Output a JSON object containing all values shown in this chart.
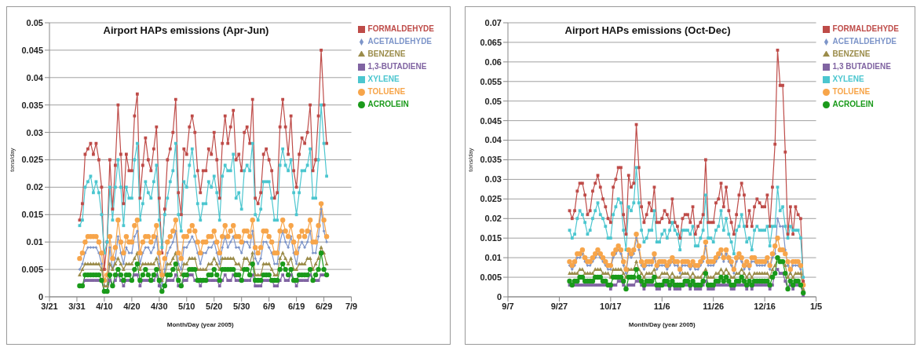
{
  "chart_data": [
    {
      "type": "line",
      "title": "Airport HAPs emissions (Apr-Jun)",
      "xlabel": "Month/Day (year 2005)",
      "ylabel": "tons/day",
      "grid": "y",
      "legend": "top right",
      "line_style": "solid",
      "x": [
        "2005-04-01",
        "2005-04-02",
        "2005-04-03",
        "2005-04-04",
        "2005-04-05",
        "2005-04-06",
        "2005-04-07",
        "2005-04-08",
        "2005-04-09",
        "2005-04-10",
        "2005-04-11",
        "2005-04-12",
        "2005-04-13",
        "2005-04-14",
        "2005-04-15",
        "2005-04-16",
        "2005-04-17",
        "2005-04-18",
        "2005-04-19",
        "2005-04-20",
        "2005-04-21",
        "2005-04-22",
        "2005-04-23",
        "2005-04-24",
        "2005-04-25",
        "2005-04-26",
        "2005-04-27",
        "2005-04-28",
        "2005-04-29",
        "2005-04-30",
        "2005-05-01",
        "2005-05-02",
        "2005-05-03",
        "2005-05-04",
        "2005-05-05",
        "2005-05-06",
        "2005-05-07",
        "2005-05-08",
        "2005-05-09",
        "2005-05-10",
        "2005-05-11",
        "2005-05-12",
        "2005-05-13",
        "2005-05-14",
        "2005-05-15",
        "2005-05-16",
        "2005-05-17",
        "2005-05-18",
        "2005-05-19",
        "2005-05-20",
        "2005-05-21",
        "2005-05-22",
        "2005-05-23",
        "2005-05-24",
        "2005-05-25",
        "2005-05-26",
        "2005-05-27",
        "2005-05-28",
        "2005-05-29",
        "2005-05-30",
        "2005-05-31",
        "2005-06-01",
        "2005-06-02",
        "2005-06-03",
        "2005-06-04",
        "2005-06-05",
        "2005-06-06",
        "2005-06-07",
        "2005-06-08",
        "2005-06-09",
        "2005-06-10",
        "2005-06-11",
        "2005-06-12",
        "2005-06-13",
        "2005-06-14",
        "2005-06-15",
        "2005-06-16",
        "2005-06-17",
        "2005-06-18",
        "2005-06-19",
        "2005-06-20",
        "2005-06-21",
        "2005-06-22",
        "2005-06-23",
        "2005-06-24",
        "2005-06-25",
        "2005-06-26",
        "2005-06-27",
        "2005-06-28",
        "2005-06-29",
        "2005-06-30"
      ],
      "xlim": [
        "2005-03-21",
        "2005-07-09"
      ],
      "xticks": [
        {
          "value": "2005-03-21",
          "label": "3/21"
        },
        {
          "value": "2005-03-31",
          "label": "3/31"
        },
        {
          "value": "2005-04-10",
          "label": "4/10"
        },
        {
          "value": "2005-04-20",
          "label": "4/20"
        },
        {
          "value": "2005-04-30",
          "label": "4/30"
        },
        {
          "value": "2005-05-10",
          "label": "5/10"
        },
        {
          "value": "2005-05-20",
          "label": "5/20"
        },
        {
          "value": "2005-05-30",
          "label": "5/30"
        },
        {
          "value": "2005-06-09",
          "label": "6/9"
        },
        {
          "value": "2005-06-19",
          "label": "6/19"
        },
        {
          "value": "2005-06-29",
          "label": "6/29"
        },
        {
          "value": "2005-07-09",
          "label": "7/9"
        }
      ],
      "ylim": [
        0,
        0.05
      ],
      "yticks": [
        0,
        0.005,
        0.01,
        0.015,
        0.02,
        0.025,
        0.03,
        0.035,
        0.04,
        0.045,
        0.05
      ],
      "series": [
        {
          "name": "FORMALDEHYDE",
          "color": "#be4b48",
          "marker": "square",
          "values": [
            0.014,
            0.017,
            0.026,
            0.027,
            0.028,
            0.026,
            0.028,
            0.025,
            0.02,
            0.005,
            0.01,
            0.025,
            0.016,
            0.024,
            0.035,
            0.026,
            0.017,
            0.026,
            0.023,
            0.023,
            0.033,
            0.037,
            0.018,
            0.024,
            0.029,
            0.025,
            0.023,
            0.027,
            0.031,
            0.018,
            0.008,
            0.016,
            0.025,
            0.027,
            0.03,
            0.036,
            0.019,
            0.015,
            0.027,
            0.026,
            0.031,
            0.033,
            0.03,
            0.023,
            0.019,
            0.023,
            0.023,
            0.027,
            0.026,
            0.03,
            0.025,
            0.018,
            0.028,
            0.033,
            0.028,
            0.031,
            0.034,
            0.025,
            0.026,
            0.023,
            0.03,
            0.031,
            0.028,
            0.036,
            0.018,
            0.017,
            0.019,
            0.026,
            0.027,
            0.025,
            0.023,
            0.018,
            0.019,
            0.031,
            0.036,
            0.031,
            0.026,
            0.033,
            0.023,
            0.02,
            0.026,
            0.029,
            0.028,
            0.03,
            0.035,
            0.023,
            0.025,
            0.033,
            0.045,
            0.035,
            0.028
          ]
        },
        {
          "name": "ACETALDEHYDE",
          "color": "#7d95c9",
          "marker": "diamond",
          "values": [
            0.005,
            0.006,
            0.008,
            0.009,
            0.009,
            0.009,
            0.009,
            0.008,
            0.006,
            0.002,
            0.002,
            0.009,
            0.005,
            0.007,
            0.011,
            0.008,
            0.006,
            0.009,
            0.008,
            0.008,
            0.011,
            0.012,
            0.006,
            0.008,
            0.009,
            0.009,
            0.008,
            0.009,
            0.011,
            0.006,
            0.002,
            0.005,
            0.008,
            0.009,
            0.01,
            0.012,
            0.006,
            0.005,
            0.009,
            0.009,
            0.01,
            0.011,
            0.01,
            0.008,
            0.006,
            0.008,
            0.008,
            0.009,
            0.009,
            0.01,
            0.008,
            0.006,
            0.009,
            0.011,
            0.009,
            0.01,
            0.011,
            0.009,
            0.009,
            0.008,
            0.01,
            0.01,
            0.009,
            0.012,
            0.007,
            0.006,
            0.007,
            0.01,
            0.01,
            0.009,
            0.008,
            0.006,
            0.006,
            0.01,
            0.012,
            0.01,
            0.009,
            0.011,
            0.008,
            0.006,
            0.009,
            0.01,
            0.009,
            0.01,
            0.012,
            0.008,
            0.008,
            0.011,
            0.016,
            0.012,
            0.01
          ]
        },
        {
          "name": "BENZENE",
          "color": "#9b8c4a",
          "marker": "triangle",
          "values": [
            0.004,
            0.005,
            0.006,
            0.006,
            0.006,
            0.006,
            0.006,
            0.006,
            0.005,
            0.002,
            0.002,
            0.006,
            0.005,
            0.006,
            0.007,
            0.006,
            0.005,
            0.006,
            0.006,
            0.006,
            0.007,
            0.008,
            0.005,
            0.006,
            0.006,
            0.006,
            0.006,
            0.006,
            0.007,
            0.005,
            0.003,
            0.004,
            0.006,
            0.006,
            0.007,
            0.008,
            0.005,
            0.004,
            0.006,
            0.006,
            0.007,
            0.007,
            0.007,
            0.005,
            0.005,
            0.005,
            0.005,
            0.006,
            0.006,
            0.007,
            0.006,
            0.005,
            0.007,
            0.007,
            0.007,
            0.007,
            0.007,
            0.006,
            0.006,
            0.005,
            0.007,
            0.007,
            0.006,
            0.008,
            0.004,
            0.004,
            0.004,
            0.006,
            0.006,
            0.006,
            0.005,
            0.004,
            0.004,
            0.007,
            0.008,
            0.007,
            0.006,
            0.007,
            0.005,
            0.005,
            0.006,
            0.006,
            0.006,
            0.007,
            0.007,
            0.005,
            0.006,
            0.007,
            0.009,
            0.008,
            0.006
          ]
        },
        {
          "name": "1,3-BUTADIENE",
          "color": "#8064a2",
          "marker": "square",
          "values": [
            0.002,
            0.002,
            0.003,
            0.003,
            0.003,
            0.003,
            0.003,
            0.003,
            0.003,
            0.001,
            0.001,
            0.003,
            0.002,
            0.003,
            0.004,
            0.003,
            0.002,
            0.003,
            0.003,
            0.003,
            0.004,
            0.004,
            0.002,
            0.003,
            0.003,
            0.003,
            0.003,
            0.003,
            0.004,
            0.002,
            0.001,
            0.002,
            0.003,
            0.003,
            0.003,
            0.004,
            0.002,
            0.002,
            0.003,
            0.003,
            0.004,
            0.004,
            0.003,
            0.003,
            0.002,
            0.003,
            0.003,
            0.003,
            0.003,
            0.003,
            0.003,
            0.002,
            0.003,
            0.004,
            0.003,
            0.003,
            0.004,
            0.003,
            0.003,
            0.003,
            0.003,
            0.003,
            0.003,
            0.004,
            0.002,
            0.002,
            0.002,
            0.003,
            0.003,
            0.003,
            0.003,
            0.002,
            0.002,
            0.003,
            0.004,
            0.003,
            0.003,
            0.004,
            0.003,
            0.002,
            0.003,
            0.003,
            0.003,
            0.003,
            0.004,
            0.003,
            0.003,
            0.003,
            0.004,
            0.004,
            0.004
          ]
        },
        {
          "name": "XYLENE",
          "color": "#4bc6cf",
          "marker": "square",
          "values": [
            0.013,
            0.014,
            0.02,
            0.021,
            0.022,
            0.019,
            0.021,
            0.019,
            0.015,
            0.008,
            0.01,
            0.02,
            0.014,
            0.02,
            0.025,
            0.02,
            0.013,
            0.02,
            0.018,
            0.018,
            0.025,
            0.028,
            0.014,
            0.017,
            0.021,
            0.019,
            0.018,
            0.021,
            0.024,
            0.014,
            0.009,
            0.015,
            0.018,
            0.021,
            0.023,
            0.028,
            0.015,
            0.012,
            0.021,
            0.02,
            0.024,
            0.027,
            0.022,
            0.017,
            0.014,
            0.017,
            0.017,
            0.021,
            0.02,
            0.022,
            0.019,
            0.014,
            0.022,
            0.024,
            0.023,
            0.023,
            0.026,
            0.018,
            0.019,
            0.016,
            0.023,
            0.024,
            0.023,
            0.028,
            0.015,
            0.014,
            0.016,
            0.021,
            0.021,
            0.021,
            0.018,
            0.014,
            0.014,
            0.024,
            0.027,
            0.024,
            0.023,
            0.025,
            0.019,
            0.015,
            0.019,
            0.023,
            0.023,
            0.024,
            0.027,
            0.018,
            0.018,
            0.025,
            0.035,
            0.028,
            0.022
          ]
        },
        {
          "name": "TOLUENE",
          "color": "#f7a54a",
          "marker": "circle",
          "values": [
            0.007,
            0.008,
            0.01,
            0.011,
            0.011,
            0.011,
            0.011,
            0.01,
            0.008,
            0.003,
            0.004,
            0.011,
            0.007,
            0.009,
            0.014,
            0.01,
            0.008,
            0.011,
            0.01,
            0.01,
            0.013,
            0.014,
            0.008,
            0.01,
            0.011,
            0.011,
            0.01,
            0.011,
            0.013,
            0.008,
            0.004,
            0.007,
            0.01,
            0.011,
            0.012,
            0.014,
            0.008,
            0.007,
            0.011,
            0.011,
            0.012,
            0.013,
            0.012,
            0.01,
            0.008,
            0.01,
            0.01,
            0.011,
            0.011,
            0.012,
            0.01,
            0.008,
            0.011,
            0.013,
            0.011,
            0.012,
            0.013,
            0.011,
            0.011,
            0.01,
            0.012,
            0.012,
            0.011,
            0.014,
            0.009,
            0.008,
            0.009,
            0.012,
            0.012,
            0.011,
            0.01,
            0.008,
            0.008,
            0.012,
            0.014,
            0.012,
            0.011,
            0.013,
            0.01,
            0.008,
            0.011,
            0.012,
            0.011,
            0.012,
            0.014,
            0.01,
            0.01,
            0.013,
            0.017,
            0.014,
            0.011
          ]
        },
        {
          "name": "ACROLEIN",
          "color": "#1a9a1a",
          "marker": "circle",
          "values": [
            0.002,
            0.002,
            0.004,
            0.004,
            0.004,
            0.004,
            0.004,
            0.004,
            0.003,
            0.001,
            0.001,
            0.004,
            0.002,
            0.004,
            0.005,
            0.004,
            0.003,
            0.004,
            0.004,
            0.003,
            0.005,
            0.006,
            0.003,
            0.004,
            0.005,
            0.004,
            0.003,
            0.004,
            0.005,
            0.003,
            0.001,
            0.002,
            0.004,
            0.004,
            0.005,
            0.006,
            0.003,
            0.002,
            0.004,
            0.004,
            0.005,
            0.005,
            0.005,
            0.003,
            0.003,
            0.003,
            0.003,
            0.004,
            0.004,
            0.005,
            0.004,
            0.003,
            0.005,
            0.005,
            0.005,
            0.005,
            0.005,
            0.004,
            0.004,
            0.003,
            0.005,
            0.005,
            0.004,
            0.006,
            0.003,
            0.003,
            0.003,
            0.004,
            0.004,
            0.004,
            0.003,
            0.003,
            0.003,
            0.005,
            0.006,
            0.005,
            0.004,
            0.005,
            0.003,
            0.003,
            0.004,
            0.004,
            0.004,
            0.004,
            0.005,
            0.003,
            0.004,
            0.005,
            0.008,
            0.005,
            0.004
          ]
        }
      ]
    },
    {
      "type": "line",
      "title": "Airport HAPs emissions (Oct-Dec)",
      "xlabel": "Month/Day (year 2005)",
      "ylabel": "tons/day",
      "grid": "y",
      "legend": "top right",
      "line_style": "solid",
      "x": [
        "2005-10-01",
        "2005-10-02",
        "2005-10-03",
        "2005-10-04",
        "2005-10-05",
        "2005-10-06",
        "2005-10-07",
        "2005-10-08",
        "2005-10-09",
        "2005-10-10",
        "2005-10-11",
        "2005-10-12",
        "2005-10-13",
        "2005-10-14",
        "2005-10-15",
        "2005-10-16",
        "2005-10-17",
        "2005-10-18",
        "2005-10-19",
        "2005-10-20",
        "2005-10-21",
        "2005-10-22",
        "2005-10-23",
        "2005-10-24",
        "2005-10-25",
        "2005-10-26",
        "2005-10-27",
        "2005-10-28",
        "2005-10-29",
        "2005-10-30",
        "2005-10-31",
        "2005-11-01",
        "2005-11-02",
        "2005-11-03",
        "2005-11-04",
        "2005-11-05",
        "2005-11-06",
        "2005-11-07",
        "2005-11-08",
        "2005-11-09",
        "2005-11-10",
        "2005-11-11",
        "2005-11-12",
        "2005-11-13",
        "2005-11-14",
        "2005-11-15",
        "2005-11-16",
        "2005-11-17",
        "2005-11-18",
        "2005-11-19",
        "2005-11-20",
        "2005-11-21",
        "2005-11-22",
        "2005-11-23",
        "2005-11-24",
        "2005-11-25",
        "2005-11-26",
        "2005-11-27",
        "2005-11-28",
        "2005-11-29",
        "2005-11-30",
        "2005-12-01",
        "2005-12-02",
        "2005-12-03",
        "2005-12-04",
        "2005-12-05",
        "2005-12-06",
        "2005-12-07",
        "2005-12-08",
        "2005-12-09",
        "2005-12-10",
        "2005-12-11",
        "2005-12-12",
        "2005-12-13",
        "2005-12-14",
        "2005-12-15",
        "2005-12-16",
        "2005-12-17",
        "2005-12-18",
        "2005-12-19",
        "2005-12-20",
        "2005-12-21",
        "2005-12-22",
        "2005-12-23",
        "2005-12-24",
        "2005-12-25",
        "2005-12-26",
        "2005-12-27",
        "2005-12-28",
        "2005-12-29",
        "2005-12-30",
        "2005-12-31"
      ],
      "xlim": [
        "2005-09-07",
        "2006-01-05"
      ],
      "xticks": [
        {
          "value": "2005-09-07",
          "label": "9/7"
        },
        {
          "value": "2005-09-27",
          "label": "9/27"
        },
        {
          "value": "2005-10-17",
          "label": "10/17"
        },
        {
          "value": "2005-11-06",
          "label": "11/6"
        },
        {
          "value": "2005-11-26",
          "label": "11/26"
        },
        {
          "value": "2005-12-16",
          "label": "12/16"
        },
        {
          "value": "2006-01-05",
          "label": "1/5"
        }
      ],
      "ylim": [
        0,
        0.07
      ],
      "yticks": [
        0,
        0.005,
        0.01,
        0.015,
        0.02,
        0.025,
        0.03,
        0.035,
        0.04,
        0.045,
        0.05,
        0.055,
        0.06,
        0.065,
        0.07
      ],
      "series": [
        {
          "name": "FORMALDEHYDE",
          "color": "#be4b48",
          "marker": "square",
          "values": [
            0.022,
            0.02,
            0.022,
            0.027,
            0.029,
            0.029,
            0.026,
            0.021,
            0.022,
            0.027,
            0.029,
            0.031,
            0.028,
            0.025,
            0.023,
            0.02,
            0.019,
            0.028,
            0.03,
            0.033,
            0.033,
            0.021,
            0.016,
            0.031,
            0.028,
            0.029,
            0.044,
            0.033,
            0.023,
            0.019,
            0.021,
            0.024,
            0.022,
            0.028,
            0.019,
            0.019,
            0.02,
            0.022,
            0.021,
            0.019,
            0.025,
            0.019,
            0.018,
            0.015,
            0.02,
            0.021,
            0.021,
            0.019,
            0.023,
            0.016,
            0.018,
            0.019,
            0.021,
            0.035,
            0.019,
            0.019,
            0.019,
            0.024,
            0.025,
            0.029,
            0.023,
            0.028,
            0.022,
            0.019,
            0.016,
            0.021,
            0.026,
            0.029,
            0.026,
            0.018,
            0.022,
            0.018,
            0.023,
            0.025,
            0.024,
            0.023,
            0.023,
            0.026,
            0.018,
            0.028,
            0.039,
            0.063,
            0.054,
            0.054,
            0.037,
            0.016,
            0.023,
            0.016,
            0.023,
            0.021,
            0.02,
            0.004
          ]
        },
        {
          "name": "ACETALDEHYDE",
          "color": "#7d95c9",
          "marker": "diamond",
          "values": [
            0.008,
            0.007,
            0.008,
            0.01,
            0.01,
            0.011,
            0.009,
            0.008,
            0.008,
            0.009,
            0.01,
            0.011,
            0.01,
            0.009,
            0.008,
            0.007,
            0.007,
            0.01,
            0.011,
            0.012,
            0.011,
            0.008,
            0.006,
            0.011,
            0.01,
            0.011,
            0.015,
            0.012,
            0.008,
            0.007,
            0.008,
            0.008,
            0.008,
            0.01,
            0.007,
            0.008,
            0.008,
            0.008,
            0.007,
            0.008,
            0.009,
            0.008,
            0.008,
            0.006,
            0.008,
            0.008,
            0.008,
            0.007,
            0.008,
            0.007,
            0.007,
            0.008,
            0.009,
            0.013,
            0.008,
            0.008,
            0.008,
            0.009,
            0.01,
            0.011,
            0.009,
            0.011,
            0.009,
            0.008,
            0.006,
            0.009,
            0.01,
            0.009,
            0.007,
            0.008,
            0.007,
            0.009,
            0.009,
            0.008,
            0.008,
            0.008,
            0.008,
            0.009,
            0.007,
            0.01,
            0.011,
            0.02,
            0.018,
            0.018,
            0.012,
            0.008,
            0.006,
            0.008,
            0.008,
            0.008,
            0.007,
            0.002
          ]
        },
        {
          "name": "BENZENE",
          "color": "#9b8c4a",
          "marker": "triangle",
          "values": [
            0.006,
            0.006,
            0.006,
            0.006,
            0.007,
            0.007,
            0.006,
            0.006,
            0.006,
            0.006,
            0.007,
            0.007,
            0.007,
            0.006,
            0.006,
            0.006,
            0.005,
            0.007,
            0.007,
            0.007,
            0.007,
            0.006,
            0.005,
            0.007,
            0.007,
            0.007,
            0.009,
            0.007,
            0.006,
            0.005,
            0.006,
            0.006,
            0.006,
            0.007,
            0.005,
            0.005,
            0.006,
            0.006,
            0.006,
            0.005,
            0.006,
            0.005,
            0.005,
            0.005,
            0.006,
            0.006,
            0.006,
            0.005,
            0.006,
            0.005,
            0.005,
            0.005,
            0.006,
            0.007,
            0.005,
            0.005,
            0.005,
            0.006,
            0.006,
            0.007,
            0.006,
            0.007,
            0.006,
            0.005,
            0.005,
            0.006,
            0.006,
            0.007,
            0.006,
            0.005,
            0.006,
            0.005,
            0.006,
            0.006,
            0.006,
            0.006,
            0.006,
            0.006,
            0.005,
            0.007,
            0.008,
            0.01,
            0.009,
            0.009,
            0.008,
            0.005,
            0.006,
            0.005,
            0.006,
            0.006,
            0.006,
            0.002
          ]
        },
        {
          "name": "1,3 BUTADIENE",
          "color": "#8064a2",
          "marker": "square",
          "values": [
            0.003,
            0.003,
            0.003,
            0.003,
            0.003,
            0.003,
            0.003,
            0.003,
            0.003,
            0.003,
            0.003,
            0.003,
            0.003,
            0.003,
            0.003,
            0.003,
            0.002,
            0.003,
            0.003,
            0.004,
            0.004,
            0.003,
            0.002,
            0.003,
            0.003,
            0.003,
            0.004,
            0.004,
            0.003,
            0.002,
            0.003,
            0.003,
            0.003,
            0.003,
            0.002,
            0.002,
            0.003,
            0.003,
            0.003,
            0.002,
            0.003,
            0.002,
            0.002,
            0.002,
            0.003,
            0.003,
            0.003,
            0.002,
            0.003,
            0.002,
            0.002,
            0.002,
            0.003,
            0.004,
            0.002,
            0.002,
            0.002,
            0.003,
            0.003,
            0.003,
            0.003,
            0.003,
            0.003,
            0.002,
            0.002,
            0.003,
            0.003,
            0.003,
            0.003,
            0.002,
            0.003,
            0.002,
            0.003,
            0.003,
            0.003,
            0.003,
            0.003,
            0.003,
            0.002,
            0.003,
            0.006,
            0.007,
            0.006,
            0.006,
            0.004,
            0.002,
            0.003,
            0.002,
            0.003,
            0.003,
            0.003,
            0
          ]
        },
        {
          "name": "XYLENE",
          "color": "#4bc6cf",
          "marker": "square",
          "values": [
            0.017,
            0.015,
            0.016,
            0.02,
            0.022,
            0.021,
            0.019,
            0.016,
            0.017,
            0.02,
            0.022,
            0.024,
            0.021,
            0.02,
            0.018,
            0.015,
            0.015,
            0.021,
            0.023,
            0.025,
            0.024,
            0.017,
            0.012,
            0.023,
            0.022,
            0.024,
            0.033,
            0.024,
            0.017,
            0.014,
            0.015,
            0.017,
            0.017,
            0.022,
            0.014,
            0.014,
            0.016,
            0.017,
            0.015,
            0.017,
            0.019,
            0.017,
            0.016,
            0.012,
            0.017,
            0.017,
            0.017,
            0.016,
            0.018,
            0.013,
            0.013,
            0.015,
            0.017,
            0.026,
            0.015,
            0.015,
            0.014,
            0.017,
            0.018,
            0.022,
            0.017,
            0.02,
            0.016,
            0.014,
            0.011,
            0.017,
            0.018,
            0.021,
            0.018,
            0.014,
            0.015,
            0.012,
            0.017,
            0.018,
            0.017,
            0.017,
            0.017,
            0.018,
            0.013,
            0.018,
            0.018,
            0.028,
            0.022,
            0.023,
            0.018,
            0.015,
            0.018,
            0.017,
            0.017,
            0.017,
            0.015,
            0.005
          ]
        },
        {
          "name": "TOLUENE",
          "color": "#f7a54a",
          "marker": "circle",
          "values": [
            0.009,
            0.008,
            0.009,
            0.011,
            0.011,
            0.012,
            0.01,
            0.009,
            0.009,
            0.01,
            0.011,
            0.012,
            0.011,
            0.01,
            0.009,
            0.008,
            0.008,
            0.011,
            0.012,
            0.013,
            0.012,
            0.009,
            0.007,
            0.012,
            0.011,
            0.012,
            0.016,
            0.013,
            0.009,
            0.008,
            0.009,
            0.009,
            0.009,
            0.011,
            0.008,
            0.009,
            0.009,
            0.009,
            0.008,
            0.009,
            0.01,
            0.009,
            0.009,
            0.007,
            0.009,
            0.009,
            0.009,
            0.008,
            0.009,
            0.008,
            0.008,
            0.009,
            0.01,
            0.014,
            0.009,
            0.009,
            0.009,
            0.01,
            0.011,
            0.012,
            0.01,
            0.012,
            0.01,
            0.009,
            0.007,
            0.01,
            0.011,
            0.01,
            0.008,
            0.009,
            0.008,
            0.01,
            0.01,
            0.009,
            0.009,
            0.009,
            0.009,
            0.01,
            0.008,
            0.011,
            0.013,
            0.015,
            0.012,
            0.012,
            0.011,
            0.009,
            0.007,
            0.009,
            0.009,
            0.009,
            0.008,
            0.003
          ]
        },
        {
          "name": "ACROLEIN",
          "color": "#1a9a1a",
          "marker": "circle",
          "values": [
            0.004,
            0.003,
            0.004,
            0.004,
            0.005,
            0.005,
            0.004,
            0.004,
            0.004,
            0.004,
            0.005,
            0.005,
            0.005,
            0.004,
            0.004,
            0.003,
            0.003,
            0.005,
            0.005,
            0.005,
            0.005,
            0.004,
            0.002,
            0.005,
            0.005,
            0.005,
            0.007,
            0.005,
            0.004,
            0.003,
            0.004,
            0.004,
            0.004,
            0.005,
            0.003,
            0.003,
            0.003,
            0.004,
            0.004,
            0.003,
            0.004,
            0.003,
            0.003,
            0.003,
            0.003,
            0.004,
            0.004,
            0.003,
            0.004,
            0.003,
            0.003,
            0.003,
            0.004,
            0.006,
            0.003,
            0.003,
            0.003,
            0.004,
            0.004,
            0.005,
            0.004,
            0.005,
            0.004,
            0.003,
            0.003,
            0.004,
            0.004,
            0.005,
            0.004,
            0.003,
            0.004,
            0.003,
            0.004,
            0.004,
            0.004,
            0.004,
            0.004,
            0.004,
            0.003,
            0.005,
            0.006,
            0.01,
            0.009,
            0.009,
            0.006,
            0.002,
            0.004,
            0.003,
            0.004,
            0.004,
            0.003,
            0.001
          ]
        }
      ]
    }
  ]
}
